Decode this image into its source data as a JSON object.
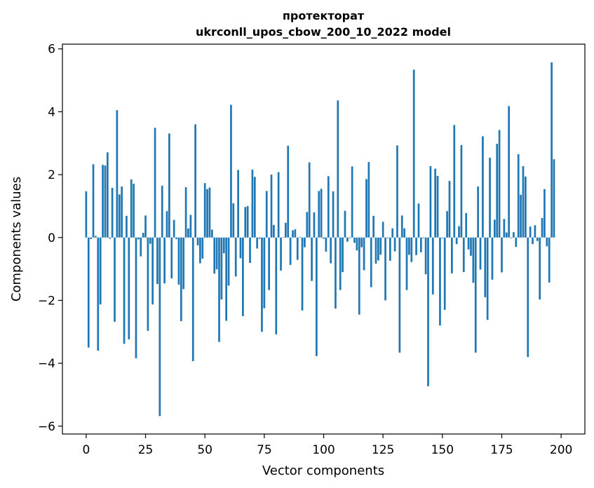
{
  "chart_data": {
    "type": "bar",
    "title": "протекторат",
    "subtitle": "ukrconll_upos_cbow_200_10_2022 model",
    "xlabel": "Vector components",
    "ylabel": "Components values",
    "xlim": [
      -10,
      210
    ],
    "ylim": [
      -6.25,
      6.15
    ],
    "xticks": [
      0,
      25,
      50,
      75,
      100,
      125,
      150,
      175,
      200
    ],
    "yticks": [
      -6,
      -4,
      -2,
      0,
      2,
      4,
      6
    ],
    "ytick_labels": [
      "−6",
      "−4",
      "−2",
      "0",
      "2",
      "4",
      "6"
    ],
    "bar_color": "#1f77b4",
    "values": [
      1.47,
      -3.5,
      -0.05,
      2.33,
      0.05,
      -3.6,
      -2.13,
      2.31,
      2.29,
      2.71,
      -0.04,
      1.58,
      -2.68,
      4.05,
      1.37,
      1.62,
      -3.38,
      0.69,
      -3.24,
      1.85,
      1.71,
      -3.84,
      -0.06,
      -0.6,
      0.15,
      0.7,
      -2.97,
      -0.2,
      -2.13,
      3.49,
      -1.48,
      -5.68,
      1.65,
      -1.46,
      0.84,
      3.31,
      -1.3,
      0.56,
      -0.05,
      -1.5,
      -2.66,
      -1.64,
      1.6,
      0.29,
      0.72,
      -3.93,
      3.6,
      -0.25,
      -0.82,
      -0.67,
      1.73,
      1.54,
      1.59,
      0.25,
      -1.15,
      -1.01,
      -3.32,
      -1.97,
      -0.5,
      -2.65,
      -1.53,
      4.22,
      1.09,
      -1.24,
      2.15,
      -0.66,
      -2.5,
      0.97,
      1.0,
      -0.81,
      2.16,
      1.93,
      -0.35,
      -0.04,
      -3.0,
      -2.25,
      1.48,
      -1.67,
      2.0,
      0.4,
      -3.08,
      2.08,
      -1.05,
      0.01,
      0.47,
      2.92,
      -0.87,
      0.23,
      0.26,
      -0.71,
      0.01,
      -2.32,
      -0.31,
      0.81,
      2.39,
      -1.38,
      0.8,
      -3.77,
      1.48,
      1.55,
      -0.04,
      -0.45,
      1.95,
      -0.82,
      1.47,
      -2.26,
      4.36,
      -1.67,
      -1.1,
      0.85,
      -0.13,
      -0.02,
      2.26,
      -0.17,
      -0.41,
      -2.45,
      -0.31,
      -1.04,
      1.86,
      2.4,
      -1.58,
      0.69,
      -0.83,
      -0.73,
      -0.55,
      0.5,
      -2.0,
      -0.02,
      -0.74,
      0.29,
      -0.44,
      2.93,
      -3.66,
      0.7,
      0.29,
      -1.67,
      -0.55,
      -0.78,
      5.34,
      -0.56,
      1.08,
      -0.47,
      -0.02,
      -1.17,
      -4.73,
      2.27,
      -1.81,
      2.19,
      1.96,
      -2.8,
      -0.02,
      -2.3,
      0.84,
      1.8,
      -1.14,
      3.58,
      -0.21,
      0.36,
      2.94,
      -1.1,
      0.78,
      -0.38,
      -0.58,
      -1.44,
      -3.66,
      1.62,
      -1.02,
      3.22,
      -1.9,
      -2.62,
      2.54,
      -1.34,
      0.57,
      2.98,
      3.42,
      -1.11,
      0.59,
      0.16,
      4.18,
      -0.02,
      0.17,
      -0.3,
      2.65,
      1.36,
      2.27,
      1.94,
      -3.8,
      0.35,
      -0.21,
      0.39,
      -0.11,
      -1.97,
      0.62,
      1.54,
      -0.28,
      -1.43,
      5.57,
      2.49
    ]
  }
}
